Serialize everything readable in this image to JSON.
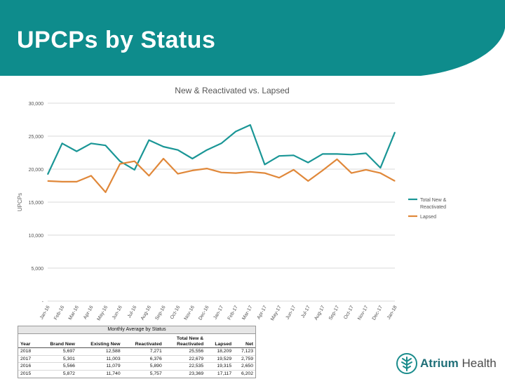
{
  "slide": {
    "title": "UPCPs by Status"
  },
  "chart_data": {
    "type": "line",
    "title": "New & Reactivated vs. Lapsed",
    "ylabel": "UPCPs",
    "xlabel": "",
    "ylim": [
      0,
      30000
    ],
    "yticks": [
      0,
      5000,
      10000,
      15000,
      20000,
      25000,
      30000
    ],
    "ytick_labels": [
      "-",
      "5,000",
      "10,000",
      "15,000",
      "20,000",
      "25,000",
      "30,000"
    ],
    "grid": true,
    "legend": "right",
    "categories": [
      "Jan-16",
      "Feb-16",
      "Mar-16",
      "Apr-16",
      "May-16",
      "Jun-16",
      "Jul-16",
      "Aug-16",
      "Sep-16",
      "Oct-16",
      "Nov-16",
      "Dec-16",
      "Jan-17",
      "Feb-17",
      "Mar-17",
      "Apr-17",
      "May-17",
      "Jun-17",
      "Jul-17",
      "Aug-17",
      "Sep-17",
      "Oct-17",
      "Nov-17",
      "Dec-17",
      "Jan-18"
    ],
    "series": [
      {
        "name": "Total New & Reactivated",
        "legend_lines": [
          "Total New &",
          "Reactivated"
        ],
        "color": "#1a9696",
        "values": [
          19200,
          23900,
          22700,
          23900,
          23600,
          21200,
          19900,
          24400,
          23400,
          22900,
          21600,
          22900,
          23900,
          25700,
          26700,
          20700,
          22000,
          22100,
          21000,
          22300,
          22300,
          22200,
          22400,
          20200,
          25600
        ]
      },
      {
        "name": "Lapsed",
        "legend_lines": [
          "Lapsed"
        ],
        "color": "#e0883a",
        "values": [
          18200,
          18100,
          18100,
          19000,
          16500,
          20800,
          21200,
          19000,
          21600,
          19300,
          19800,
          20100,
          19500,
          19400,
          19600,
          19400,
          18700,
          19900,
          18200,
          19800,
          21500,
          19400,
          19900,
          19400,
          18200
        ]
      }
    ]
  },
  "table": {
    "title": "Monthly Average by Status",
    "headers": [
      "Year",
      "Brand New",
      "Existing New",
      "Reactivated",
      "Total New & Reactivated",
      "Lapsed",
      "Net"
    ],
    "header_lines": [
      [
        "",
        "Year"
      ],
      [
        "",
        "Brand New"
      ],
      [
        "",
        "Existing New"
      ],
      [
        "",
        "Reactivated"
      ],
      [
        "Total New &",
        "Reactivated"
      ],
      [
        "",
        "Lapsed"
      ],
      [
        "",
        "Net"
      ]
    ],
    "rows": [
      [
        "2018",
        "5,697",
        "12,588",
        "7,271",
        "25,556",
        "18,209",
        "7,123"
      ],
      [
        "2017",
        "5,301",
        "11,003",
        "6,376",
        "22,679",
        "19,529",
        "2,759"
      ],
      [
        "2016",
        "5,566",
        "11,079",
        "5,890",
        "22,535",
        "19,315",
        "2,650"
      ],
      [
        "2015",
        "5,872",
        "11,740",
        "5,757",
        "23,369",
        "17,117",
        "6,202"
      ]
    ]
  },
  "logo": {
    "bold": "Atrium",
    "rest": " Health"
  }
}
